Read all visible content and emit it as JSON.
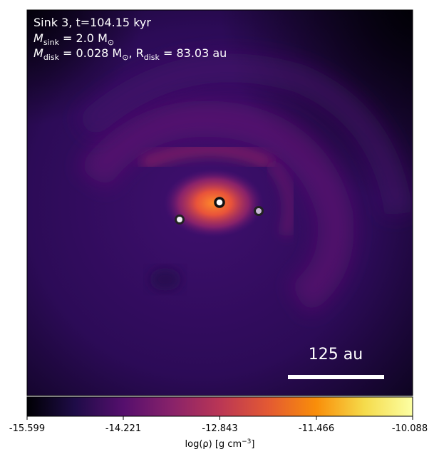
{
  "annotations": {
    "line1": "Sink 3, t=104.15 kyr",
    "line2_prefix": "M",
    "line2_sub": "sink",
    "line2_rest": " = 2.0 M",
    "line2_sub2": "⊙",
    "line3_prefix": "M",
    "line3_sub": "disk",
    "line3_mid": " = 0.028 M",
    "line3_sub2": "⊙",
    "line3_sep": ", R",
    "line3_sub3": "disk",
    "line3_rest": " = 83.03 au"
  },
  "scale_bar": {
    "label": "125 au"
  },
  "colorbar": {
    "ticks": [
      "-15.599",
      "-14.221",
      "-12.843",
      "-11.466",
      "-10.088"
    ],
    "label_prefix": "log(ρ) [g cm",
    "label_sup": "−3",
    "label_suffix": "]",
    "colors": [
      "#000004",
      "#1f0c48",
      "#550f6d",
      "#88226a",
      "#ba3655",
      "#e35933",
      "#f98e09",
      "#f5db4b",
      "#fcffa4"
    ]
  },
  "sinks": [
    {
      "name": "central",
      "fill": "#ffffff"
    },
    {
      "name": "left",
      "fill": "#f2eef8"
    },
    {
      "name": "right",
      "fill": "#c9b8d8"
    }
  ]
}
